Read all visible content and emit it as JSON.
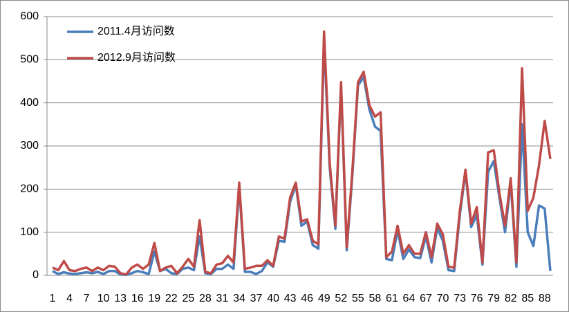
{
  "chart_data": {
    "type": "line",
    "categories": [
      "1",
      null,
      null,
      "4",
      null,
      null,
      "7",
      null,
      null,
      "10",
      null,
      null,
      "13",
      null,
      null,
      "16",
      null,
      null,
      "19",
      null,
      null,
      "22",
      null,
      null,
      "25",
      null,
      null,
      "28",
      null,
      null,
      "31",
      null,
      null,
      "34",
      null,
      null,
      "37",
      null,
      null,
      "40",
      null,
      null,
      "43",
      null,
      null,
      "46",
      null,
      null,
      "49",
      null,
      null,
      "52",
      null,
      null,
      "55",
      null,
      null,
      "58",
      null,
      null,
      "61",
      null,
      null,
      "64",
      null,
      null,
      "67",
      null,
      null,
      "70",
      null,
      null,
      "73",
      null,
      null,
      "76",
      null,
      null,
      "79",
      null,
      null,
      "82",
      null,
      null,
      "85",
      null,
      null,
      "88",
      null
    ],
    "series": [
      {
        "name": "2011.4月访问数",
        "color": "#4a7ebb",
        "values": [
          10,
          3,
          7,
          4,
          3,
          5,
          7,
          5,
          8,
          3,
          10,
          10,
          2,
          1,
          5,
          10,
          7,
          3,
          55,
          10,
          15,
          5,
          3,
          15,
          18,
          12,
          90,
          5,
          3,
          15,
          15,
          25,
          15,
          205,
          8,
          8,
          3,
          10,
          30,
          20,
          80,
          78,
          170,
          210,
          115,
          125,
          70,
          62,
          545,
          250,
          108,
          440,
          58,
          230,
          440,
          460,
          385,
          345,
          335,
          38,
          35,
          105,
          38,
          60,
          42,
          40,
          90,
          30,
          110,
          80,
          12,
          10,
          140,
          240,
          112,
          140,
          25,
          240,
          265,
          180,
          100,
          215,
          20,
          350,
          100,
          68,
          162,
          155,
          10
        ]
      },
      {
        "name": "2012.9月访问数",
        "color": "#be4b48",
        "values": [
          18,
          12,
          33,
          12,
          10,
          15,
          18,
          10,
          18,
          12,
          22,
          20,
          5,
          2,
          18,
          25,
          15,
          25,
          75,
          10,
          18,
          22,
          5,
          20,
          38,
          20,
          128,
          8,
          5,
          25,
          28,
          45,
          30,
          215,
          15,
          18,
          22,
          22,
          35,
          22,
          90,
          85,
          180,
          215,
          125,
          130,
          80,
          72,
          565,
          260,
          115,
          448,
          65,
          240,
          448,
          472,
          395,
          368,
          378,
          42,
          55,
          115,
          50,
          70,
          50,
          50,
          100,
          42,
          120,
          95,
          20,
          18,
          150,
          245,
          120,
          158,
          30,
          285,
          290,
          190,
          115,
          225,
          30,
          480,
          150,
          180,
          255,
          358,
          270
        ]
      }
    ],
    "ylim": [
      0,
      600
    ],
    "yticks": [
      0,
      100,
      200,
      300,
      400,
      500,
      600
    ],
    "grid": true,
    "legend": "upper left"
  }
}
